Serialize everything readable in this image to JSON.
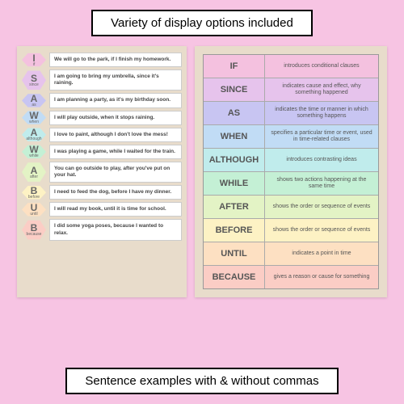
{
  "banners": {
    "top": "Variety of display options included",
    "bottom": "Sentence examples with & without commas"
  },
  "colors": {
    "bg": "#f7c4e3",
    "panel_bg": "#e8dccb",
    "rows": [
      "#f4c1df",
      "#e6c3ec",
      "#c8c5f2",
      "#c1dcf5",
      "#c0ecec",
      "#c4f0d5",
      "#e3f3c5",
      "#fdf2c4",
      "#fde0c2",
      "#fbcdc5"
    ]
  },
  "sentences": [
    {
      "letter": "I",
      "word": "if",
      "text": "We will go to the park, if I finish my homework."
    },
    {
      "letter": "S",
      "word": "since",
      "text": "I am going to bring my umbrella, since it's raining."
    },
    {
      "letter": "A",
      "word": "as",
      "text": "I am planning a party, as it's my birthday soon."
    },
    {
      "letter": "W",
      "word": "when",
      "text": "I will play outside, when it stops raining."
    },
    {
      "letter": "A",
      "word": "although",
      "text": "I love to paint, although I don't love the mess!"
    },
    {
      "letter": "W",
      "word": "while",
      "text": "I was playing a game, while I waited for the train."
    },
    {
      "letter": "A",
      "word": "after",
      "text": "You can go outside to play, after you've put on your hat."
    },
    {
      "letter": "B",
      "word": "before",
      "text": "I need to feed the dog, before I have my dinner."
    },
    {
      "letter": "U",
      "word": "until",
      "text": "I will read my book, until it is time for school."
    },
    {
      "letter": "B",
      "word": "because",
      "text": "I did some yoga poses, because I wanted to relax."
    }
  ],
  "chart": [
    {
      "word": "IF",
      "def": "introduces conditional clauses"
    },
    {
      "word": "SINCE",
      "def": "indicates cause and effect, why something happened"
    },
    {
      "word": "AS",
      "def": "indicates the time or manner in which something happens"
    },
    {
      "word": "WHEN",
      "def": "specifies a particular time or event, used in time-related clauses"
    },
    {
      "word": "ALTHOUGH",
      "def": "introduces contrasting ideas"
    },
    {
      "word": "WHILE",
      "def": "shows two actions happening at the same time"
    },
    {
      "word": "AFTER",
      "def": "shows the order or sequence of events"
    },
    {
      "word": "BEFORE",
      "def": "shows the order or sequence of events"
    },
    {
      "word": "UNTIL",
      "def": "indicates a point in time"
    },
    {
      "word": "BECAUSE",
      "def": "gives a reason or cause for something"
    }
  ]
}
